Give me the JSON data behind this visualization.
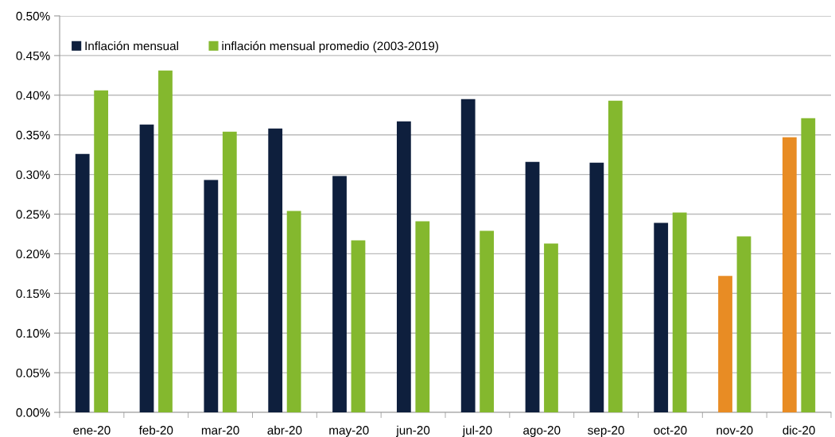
{
  "chart_data": {
    "type": "bar",
    "categories": [
      "ene-20",
      "feb-20",
      "mar-20",
      "abr-20",
      "may-20",
      "jun-20",
      "jul-20",
      "ago-20",
      "sep-20",
      "oct-20",
      "nov-20",
      "dic-20"
    ],
    "series": [
      {
        "name": "Inflación mensual",
        "color": "#0e1f3d",
        "colors": [
          "#0e1f3d",
          "#0e1f3d",
          "#0e1f3d",
          "#0e1f3d",
          "#0e1f3d",
          "#0e1f3d",
          "#0e1f3d",
          "#0e1f3d",
          "#0e1f3d",
          "#0e1f3d",
          "#e88c24",
          "#e88c24"
        ],
        "values": [
          0.326,
          0.363,
          0.293,
          0.358,
          0.298,
          0.367,
          0.395,
          0.316,
          0.315,
          0.239,
          0.172,
          0.347
        ]
      },
      {
        "name": "inflación mensual promedio (2003-2019)",
        "color": "#84b82e",
        "values": [
          0.406,
          0.431,
          0.354,
          0.254,
          0.217,
          0.241,
          0.229,
          0.213,
          0.393,
          0.252,
          0.222,
          0.371
        ]
      }
    ],
    "ylim": [
      0,
      0.5
    ],
    "yticks": [
      {
        "value": 0,
        "label": "0.00%"
      },
      {
        "value": 0.05,
        "label": "0.05%"
      },
      {
        "value": 0.1,
        "label": "0.10%"
      },
      {
        "value": 0.15,
        "label": "0.15%"
      },
      {
        "value": 0.2,
        "label": "0.20%"
      },
      {
        "value": 0.25,
        "label": "0.25%"
      },
      {
        "value": 0.3,
        "label": "0.30%"
      },
      {
        "value": 0.35,
        "label": "0.35%"
      },
      {
        "value": 0.4,
        "label": "0.40%"
      },
      {
        "value": 0.45,
        "label": "0.45%"
      },
      {
        "value": 0.5,
        "label": "0.50%"
      }
    ],
    "grid": "y",
    "legend": "top left"
  }
}
